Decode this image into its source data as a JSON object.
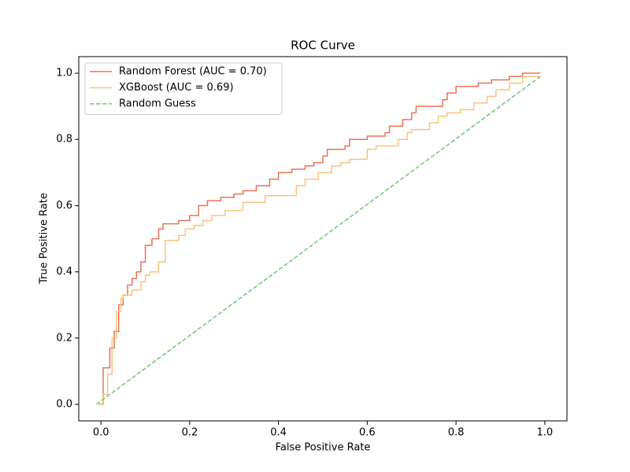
{
  "chart_data": {
    "type": "line",
    "title": "ROC Curve",
    "x_label": "False Positive Rate",
    "y_label": "True Positive Rate",
    "xlim": [
      -0.05,
      1.05
    ],
    "ylim": [
      -0.05,
      1.05
    ],
    "xticks": [
      {
        "value": 0,
        "label": "0.0"
      },
      0.2,
      0.4,
      0.6,
      0.8,
      {
        "value": 1,
        "label": "1.0"
      }
    ],
    "yticks": [
      {
        "value": 0,
        "label": "0.0"
      },
      0.2,
      0.4,
      0.6,
      0.8,
      {
        "value": 1,
        "label": "1.0"
      }
    ],
    "grid": false,
    "legend": "upper left",
    "series": [
      {
        "name": "Random Forest (AUC = 0.70)",
        "color": "#e8735a",
        "style": "solid",
        "x": [
          -0.005,
          0.005,
          0.005,
          0.02,
          0.02,
          0.03,
          0.03,
          0.04,
          0.04,
          0.05,
          0.05,
          0.06,
          0.06,
          0.07,
          0.07,
          0.08,
          0.08,
          0.09,
          0.09,
          0.1,
          0.1,
          0.115,
          0.115,
          0.13,
          0.13,
          0.14,
          0.14,
          0.175,
          0.175,
          0.2,
          0.2,
          0.22,
          0.22,
          0.24,
          0.24,
          0.27,
          0.27,
          0.3,
          0.3,
          0.32,
          0.32,
          0.35,
          0.35,
          0.38,
          0.38,
          0.4,
          0.4,
          0.43,
          0.43,
          0.46,
          0.46,
          0.48,
          0.48,
          0.5,
          0.5,
          0.51,
          0.51,
          0.55,
          0.55,
          0.56,
          0.56,
          0.6,
          0.6,
          0.64,
          0.64,
          0.65,
          0.65,
          0.68,
          0.68,
          0.7,
          0.7,
          0.71,
          0.71,
          0.77,
          0.77,
          0.78,
          0.78,
          0.8,
          0.8,
          0.85,
          0.85,
          0.88,
          0.88,
          0.92,
          0.92,
          0.95,
          0.95,
          0.99
        ],
        "values": [
          0,
          0,
          0.11,
          0.11,
          0.17,
          0.17,
          0.22,
          0.22,
          0.3,
          0.3,
          0.33,
          0.33,
          0.36,
          0.36,
          0.38,
          0.38,
          0.4,
          0.4,
          0.43,
          0.43,
          0.48,
          0.48,
          0.5,
          0.5,
          0.53,
          0.53,
          0.545,
          0.545,
          0.555,
          0.555,
          0.57,
          0.57,
          0.6,
          0.6,
          0.615,
          0.615,
          0.625,
          0.625,
          0.635,
          0.635,
          0.645,
          0.645,
          0.66,
          0.66,
          0.68,
          0.68,
          0.7,
          0.7,
          0.71,
          0.71,
          0.72,
          0.72,
          0.73,
          0.73,
          0.75,
          0.75,
          0.77,
          0.77,
          0.78,
          0.78,
          0.8,
          0.8,
          0.81,
          0.81,
          0.82,
          0.82,
          0.84,
          0.84,
          0.86,
          0.86,
          0.88,
          0.88,
          0.9,
          0.9,
          0.92,
          0.92,
          0.94,
          0.94,
          0.96,
          0.96,
          0.97,
          0.97,
          0.98,
          0.98,
          0.99,
          0.99,
          1.0,
          1.0
        ]
      },
      {
        "name": "XGBoost (AUC = 0.69)",
        "color": "#f5c57f",
        "style": "solid",
        "x": [
          -0.005,
          0.005,
          0.005,
          0.015,
          0.015,
          0.025,
          0.025,
          0.035,
          0.035,
          0.045,
          0.045,
          0.05,
          0.05,
          0.07,
          0.07,
          0.09,
          0.09,
          0.1,
          0.1,
          0.11,
          0.11,
          0.13,
          0.13,
          0.145,
          0.145,
          0.175,
          0.175,
          0.19,
          0.19,
          0.21,
          0.21,
          0.23,
          0.23,
          0.25,
          0.25,
          0.28,
          0.28,
          0.32,
          0.32,
          0.37,
          0.37,
          0.44,
          0.44,
          0.46,
          0.46,
          0.49,
          0.49,
          0.52,
          0.52,
          0.54,
          0.54,
          0.56,
          0.56,
          0.6,
          0.6,
          0.62,
          0.62,
          0.67,
          0.67,
          0.69,
          0.69,
          0.7,
          0.7,
          0.74,
          0.74,
          0.76,
          0.76,
          0.78,
          0.78,
          0.81,
          0.81,
          0.84,
          0.84,
          0.87,
          0.87,
          0.89,
          0.89,
          0.92,
          0.92,
          0.95,
          0.95,
          0.99
        ],
        "values": [
          0,
          0,
          0.03,
          0.03,
          0.09,
          0.09,
          0.2,
          0.2,
          0.28,
          0.28,
          0.32,
          0.32,
          0.33,
          0.33,
          0.345,
          0.345,
          0.37,
          0.37,
          0.39,
          0.39,
          0.4,
          0.4,
          0.43,
          0.43,
          0.495,
          0.495,
          0.51,
          0.51,
          0.53,
          0.53,
          0.54,
          0.54,
          0.555,
          0.555,
          0.57,
          0.57,
          0.585,
          0.585,
          0.61,
          0.61,
          0.63,
          0.63,
          0.66,
          0.66,
          0.68,
          0.68,
          0.7,
          0.7,
          0.72,
          0.72,
          0.73,
          0.73,
          0.74,
          0.74,
          0.77,
          0.77,
          0.78,
          0.78,
          0.8,
          0.8,
          0.82,
          0.82,
          0.83,
          0.83,
          0.85,
          0.85,
          0.87,
          0.87,
          0.88,
          0.88,
          0.89,
          0.89,
          0.91,
          0.91,
          0.93,
          0.93,
          0.95,
          0.95,
          0.97,
          0.97,
          0.99,
          0.99
        ]
      },
      {
        "name": "Random Guess",
        "color": "#74c476",
        "style": "dashed",
        "x": [
          -0.01,
          0.99
        ],
        "values": [
          0,
          0.99
        ]
      }
    ]
  }
}
